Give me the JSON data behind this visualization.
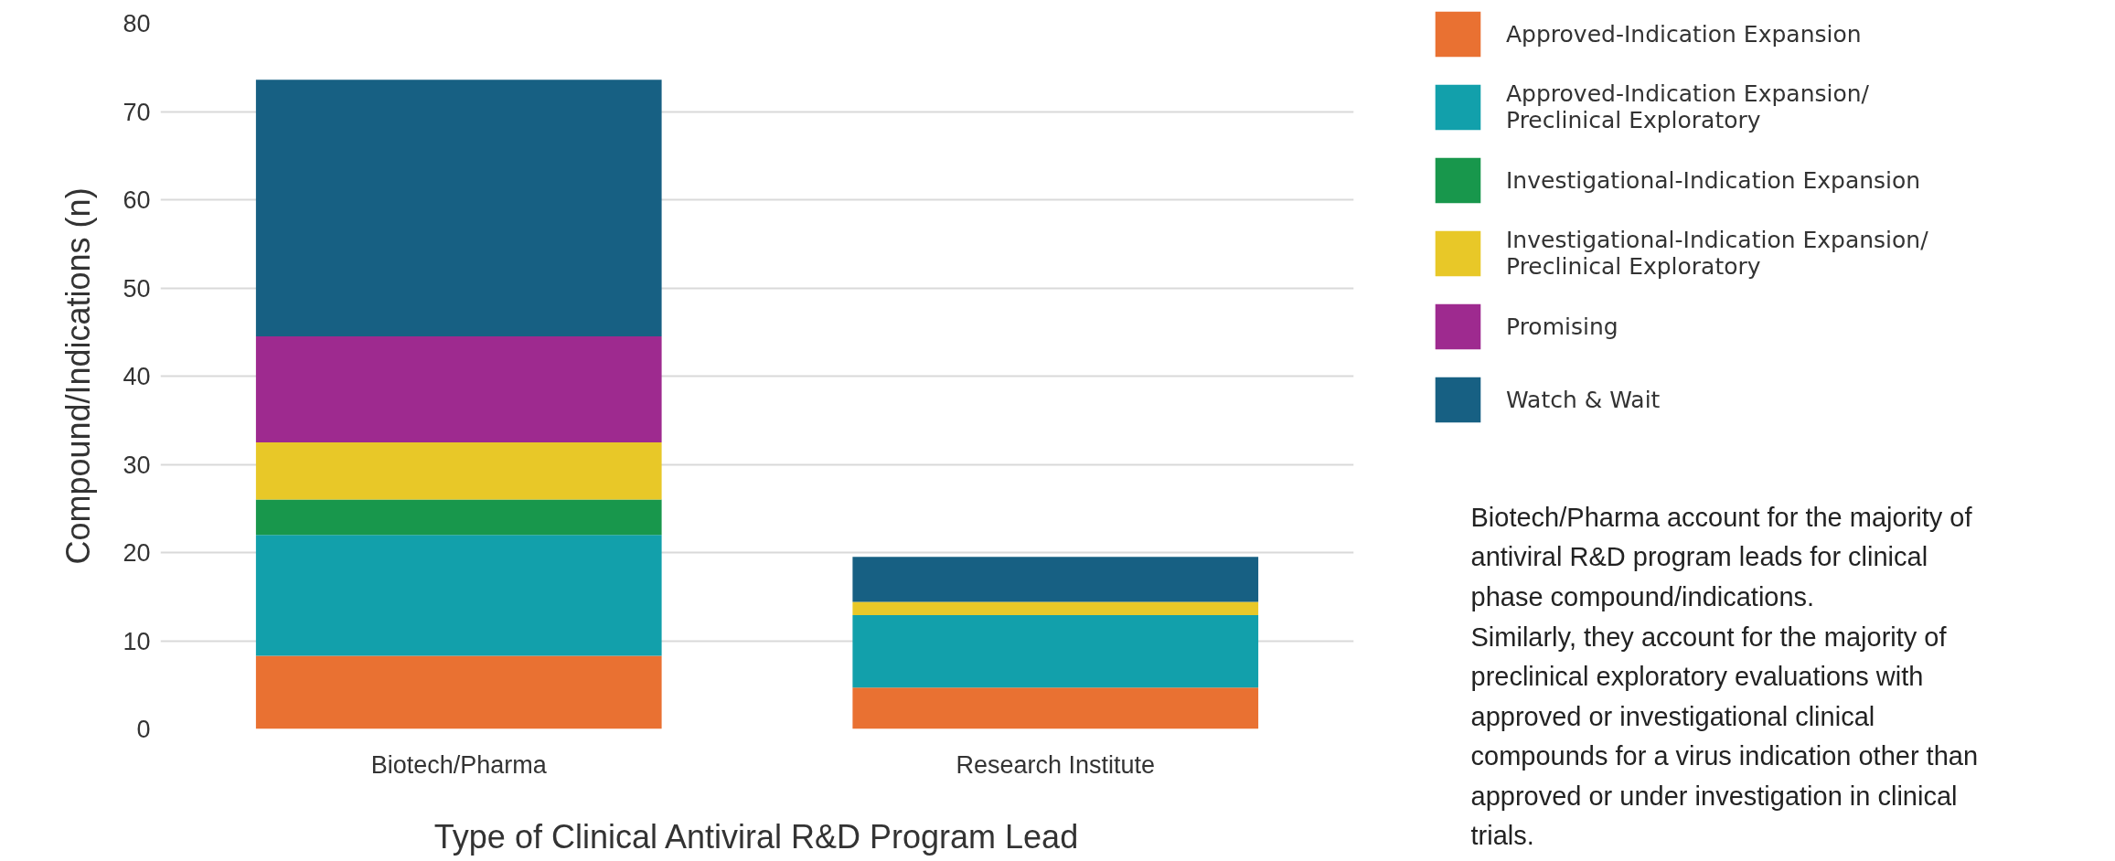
{
  "chart_data": {
    "type": "bar",
    "stacked": true,
    "xlabel": "Type of Clinical Antiviral R&D Program Lead",
    "ylabel": "Compound/Indications (n)",
    "categories": [
      "Biotech/Pharma",
      "Research Institute"
    ],
    "series": [
      {
        "name": "Approved-Indication Expansion",
        "color": "#e97132",
        "values": [
          8.3,
          4.7
        ]
      },
      {
        "name": "Approved-Indication Expansion/ Preclinical Exploratory",
        "color": "#12a0ab",
        "values": [
          13.7,
          8.2
        ]
      },
      {
        "name": "Investigational-Indication Expansion",
        "color": "#18974c",
        "values": [
          4.0,
          0
        ]
      },
      {
        "name": "Investigational-Indication Expansion/ Preclinical Exploratory",
        "color": "#e8c828",
        "values": [
          6.5,
          1.5
        ]
      },
      {
        "name": "Promising",
        "color": "#9e2a8f",
        "values": [
          12.0,
          0
        ]
      },
      {
        "name": "Watch & Wait",
        "color": "#176083",
        "values": [
          29.1,
          5.1
        ]
      }
    ],
    "ylim": [
      0,
      80
    ],
    "yticks": [
      0,
      10,
      20,
      30,
      40,
      50,
      60,
      70,
      80
    ],
    "grid": "y",
    "legend": "right",
    "annotations": [
      "Biotech/Pharma account for the majority of antiviral R&D program leads for clinical phase compound/indications.",
      "Similarly, they account for the majority of preclinical exploratory evaluations with approved or investigational clinical compounds for a virus indication other than approved or under investigation in clinical trials."
    ]
  }
}
